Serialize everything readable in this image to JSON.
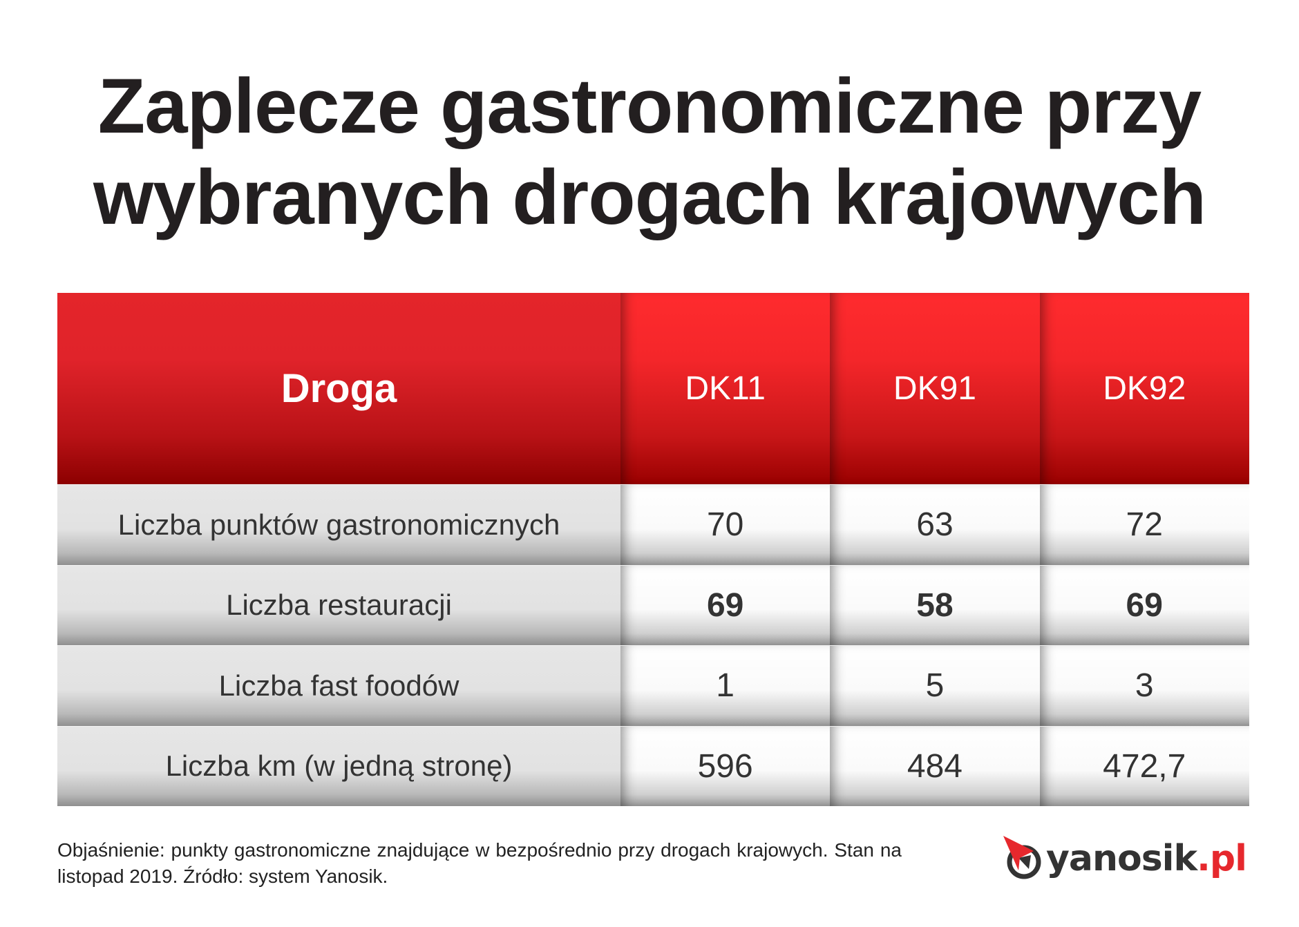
{
  "title": {
    "line1": "Zaplecze gastronomiczne przy",
    "line2": "wybranych drogach krajowych"
  },
  "table": {
    "header": [
      "Droga",
      "DK11",
      "DK91",
      "DK92"
    ],
    "rows": [
      {
        "label": "Liczba punktów gastronomicznych",
        "values": [
          "70",
          "63",
          "72"
        ],
        "bold": false
      },
      {
        "label": "Liczba restauracji",
        "values": [
          "69",
          "58",
          "69"
        ],
        "bold": true
      },
      {
        "label": "Liczba fast foodów",
        "values": [
          "1",
          "5",
          "3"
        ],
        "bold": false
      },
      {
        "label": "Liczba km (w jedną stronę)",
        "values": [
          "596",
          "484",
          "472,7"
        ],
        "bold": false
      }
    ]
  },
  "footnote": "Objaśnienie: punkty gastronomiczne znajdujące w bezpośrednio przy drogach krajowych. Stan na listopad 2019. Źródło: system Yanosik.",
  "logo": {
    "text": "yanosik",
    "suffix": ".pl",
    "icon": "compass-arrow-icon"
  },
  "colors": {
    "header_red": "#e4252a",
    "dark_red": "#8c0000",
    "logo_red": "#e6282d",
    "text_dark": "#231f20"
  }
}
